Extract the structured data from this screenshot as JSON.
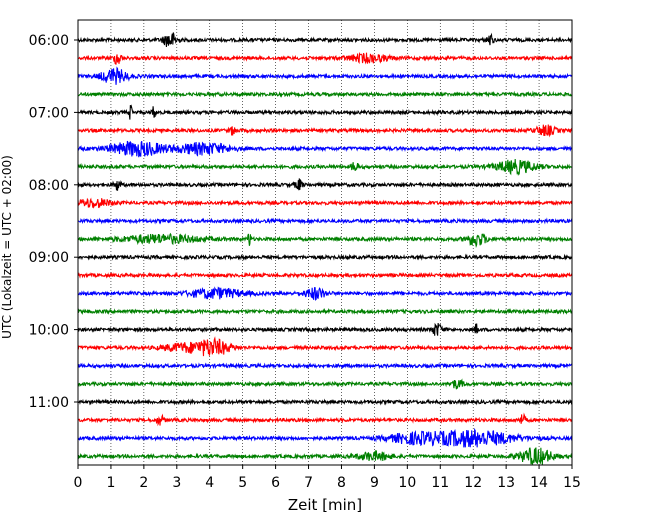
{
  "chart_data": {
    "type": "line",
    "title": "",
    "xlabel": "Zeit  [min]",
    "ylabel": "UTC (Lokalzeit = UTC + 02:00)",
    "xlim": [
      0,
      15
    ],
    "x_ticks": [
      "0",
      "1",
      "2",
      "3",
      "4",
      "5",
      "6",
      "7",
      "8",
      "9",
      "10",
      "11",
      "12",
      "13",
      "14",
      "15"
    ],
    "y_tick_labels": [
      "06:00",
      "07:00",
      "08:00",
      "09:00",
      "10:00",
      "11:00"
    ],
    "trace_start_hour": 6,
    "trace_interval_minutes": 15,
    "trace_count": 24,
    "trace_colors": [
      "#000000",
      "#ff0000",
      "#0000ff",
      "#008000"
    ],
    "grid": "vertical dotted at each minute",
    "events": [
      {
        "trace": 0,
        "t": 2.8,
        "amp": 1.0,
        "dur": 0.2
      },
      {
        "trace": 0,
        "t": 12.5,
        "amp": 0.7,
        "dur": 0.1
      },
      {
        "trace": 1,
        "t": 1.2,
        "amp": 0.9,
        "dur": 0.1
      },
      {
        "trace": 1,
        "t": 8.8,
        "amp": 0.5,
        "dur": 0.6
      },
      {
        "trace": 2,
        "t": 1.1,
        "amp": 0.9,
        "dur": 0.4
      },
      {
        "trace": 4,
        "t": 1.6,
        "amp": 0.9,
        "dur": 0.05
      },
      {
        "trace": 4,
        "t": 2.3,
        "amp": 0.8,
        "dur": 0.05
      },
      {
        "trace": 5,
        "t": 4.7,
        "amp": 0.5,
        "dur": 0.1
      },
      {
        "trace": 5,
        "t": 14.2,
        "amp": 0.6,
        "dur": 0.3
      },
      {
        "trace": 6,
        "t": 1.8,
        "amp": 0.9,
        "dur": 0.8
      },
      {
        "trace": 6,
        "t": 3.8,
        "amp": 0.7,
        "dur": 0.8
      },
      {
        "trace": 7,
        "t": 13.3,
        "amp": 0.8,
        "dur": 0.6
      },
      {
        "trace": 7,
        "t": 8.4,
        "amp": 0.6,
        "dur": 0.1
      },
      {
        "trace": 8,
        "t": 1.2,
        "amp": 0.7,
        "dur": 0.1
      },
      {
        "trace": 8,
        "t": 6.7,
        "amp": 0.7,
        "dur": 0.1
      },
      {
        "trace": 9,
        "t": 0.5,
        "amp": 0.5,
        "dur": 0.5
      },
      {
        "trace": 11,
        "t": 5.2,
        "amp": 1.0,
        "dur": 0.05
      },
      {
        "trace": 11,
        "t": 2.5,
        "amp": 0.5,
        "dur": 1.2
      },
      {
        "trace": 11,
        "t": 12.1,
        "amp": 0.8,
        "dur": 0.3
      },
      {
        "trace": 14,
        "t": 4.2,
        "amp": 0.6,
        "dur": 0.8
      },
      {
        "trace": 14,
        "t": 7.2,
        "amp": 0.7,
        "dur": 0.3
      },
      {
        "trace": 16,
        "t": 10.9,
        "amp": 0.8,
        "dur": 0.15
      },
      {
        "trace": 16,
        "t": 12.1,
        "amp": 0.7,
        "dur": 0.05
      },
      {
        "trace": 17,
        "t": 4.1,
        "amp": 1.0,
        "dur": 0.5
      },
      {
        "trace": 17,
        "t": 3.2,
        "amp": 0.5,
        "dur": 0.6
      },
      {
        "trace": 19,
        "t": 11.5,
        "amp": 0.5,
        "dur": 0.2
      },
      {
        "trace": 21,
        "t": 2.5,
        "amp": 0.6,
        "dur": 0.1
      },
      {
        "trace": 21,
        "t": 13.5,
        "amp": 0.6,
        "dur": 0.1
      },
      {
        "trace": 22,
        "t": 12,
        "amp": 1.0,
        "dur": 1.2
      },
      {
        "trace": 22,
        "t": 10.2,
        "amp": 0.6,
        "dur": 0.8
      },
      {
        "trace": 23,
        "t": 13.9,
        "amp": 1.0,
        "dur": 0.5
      },
      {
        "trace": 23,
        "t": 9,
        "amp": 0.5,
        "dur": 0.5
      }
    ]
  }
}
